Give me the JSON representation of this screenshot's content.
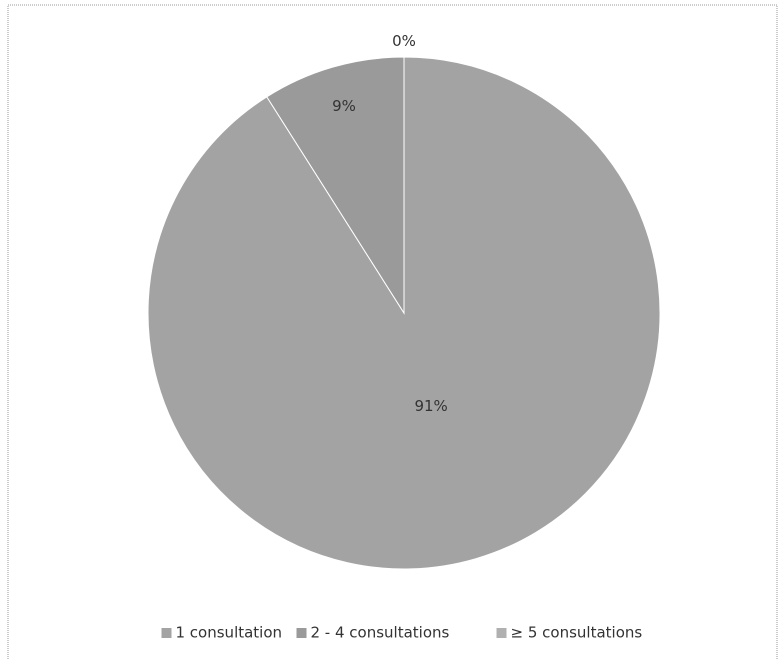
{
  "chart_data": {
    "type": "pie",
    "categories": [
      "1 consultation",
      "2 - 4 consultations",
      "≥ 5 consultations"
    ],
    "values": [
      91,
      9,
      0
    ],
    "value_labels": [
      "91%",
      "9%",
      "0%"
    ],
    "colors": [
      "#a3a3a3",
      "#9a9a9a",
      "#b0b0b0"
    ],
    "legend": "bottom"
  }
}
